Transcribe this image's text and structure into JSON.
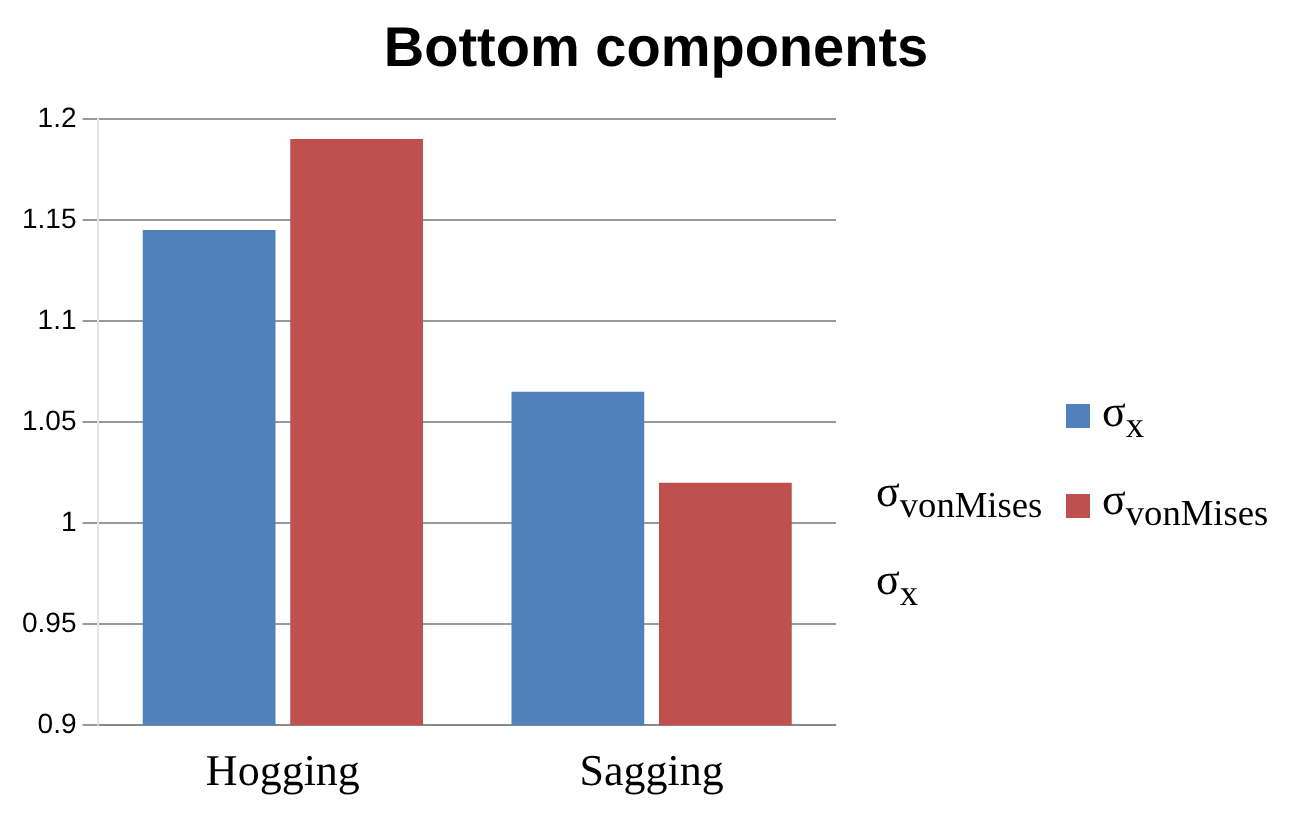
{
  "chart_data": {
    "type": "bar",
    "title": "Bottom components",
    "categories": [
      "Hogging",
      "Sagging"
    ],
    "series": [
      {
        "name": "σ$_{x}$",
        "color": "#4f81bd",
        "values": [
          1.145,
          1.065
        ]
      },
      {
        "name": "σ$_{vonMises}$",
        "color": "#c0504d",
        "values": [
          1.19,
          1.02
        ]
      }
    ],
    "ylim": [
      0.9,
      1.2
    ],
    "yticks": [
      0.9,
      0.95,
      1,
      1.05,
      1.1,
      1.15,
      1.2
    ],
    "grid": "y",
    "legend": "right"
  }
}
